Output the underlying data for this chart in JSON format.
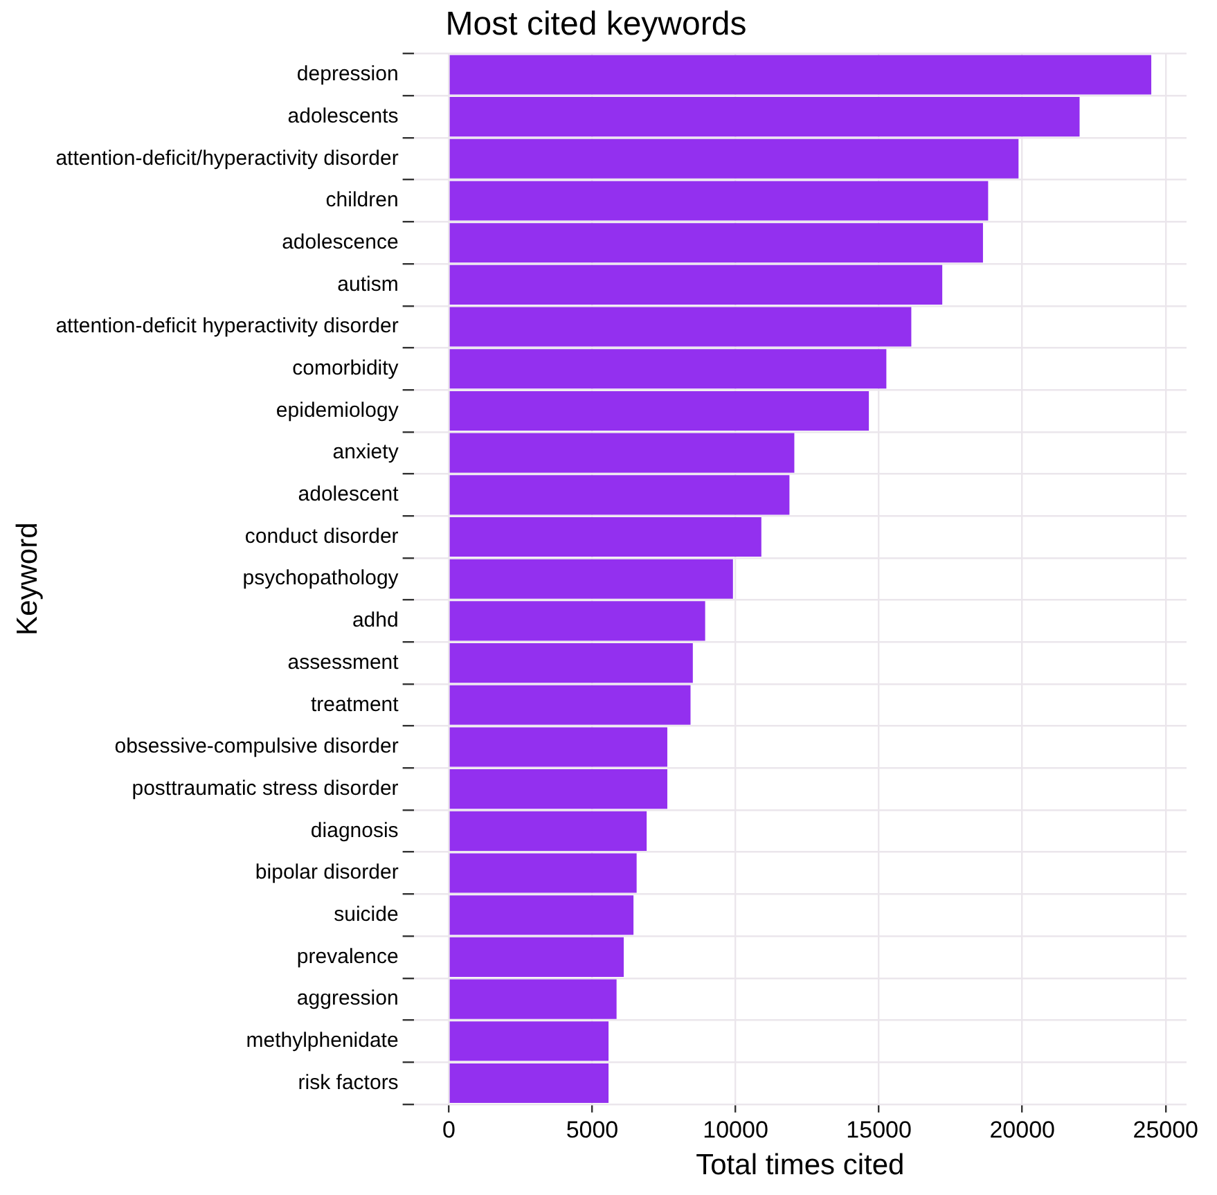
{
  "chart_data": {
    "type": "bar",
    "orientation": "horizontal",
    "title": "Most cited keywords",
    "xlabel": "Total times cited",
    "ylabel": "Keyword",
    "categories": [
      "depression",
      "adolescents",
      "attention-deficit/hyperactivity disorder",
      "children",
      "adolescence",
      "autism",
      "attention-deficit hyperactivity disorder",
      "comorbidity",
      "epidemiology",
      "anxiety",
      "adolescent",
      "conduct disorder",
      "psychopathology",
      "adhd",
      "assessment",
      "treatment",
      "obsessive-compulsive disorder",
      "posttraumatic stress disorder",
      "diagnosis",
      "bipolar disorder",
      "suicide",
      "prevalence",
      "aggression",
      "methylphenidate",
      "risk factors"
    ],
    "values": [
      24500,
      22000,
      19870,
      18810,
      18630,
      17210,
      16130,
      15260,
      14650,
      12050,
      11880,
      10900,
      9910,
      8940,
      8510,
      8430,
      7620,
      7620,
      6900,
      6550,
      6440,
      6100,
      5850,
      5570,
      5570
    ],
    "color": "#9330ef",
    "xlim": [
      -1225,
      25730
    ],
    "xticks": [
      0,
      5000,
      10000,
      15000,
      20000,
      25000
    ],
    "grid": true,
    "legend": false
  }
}
